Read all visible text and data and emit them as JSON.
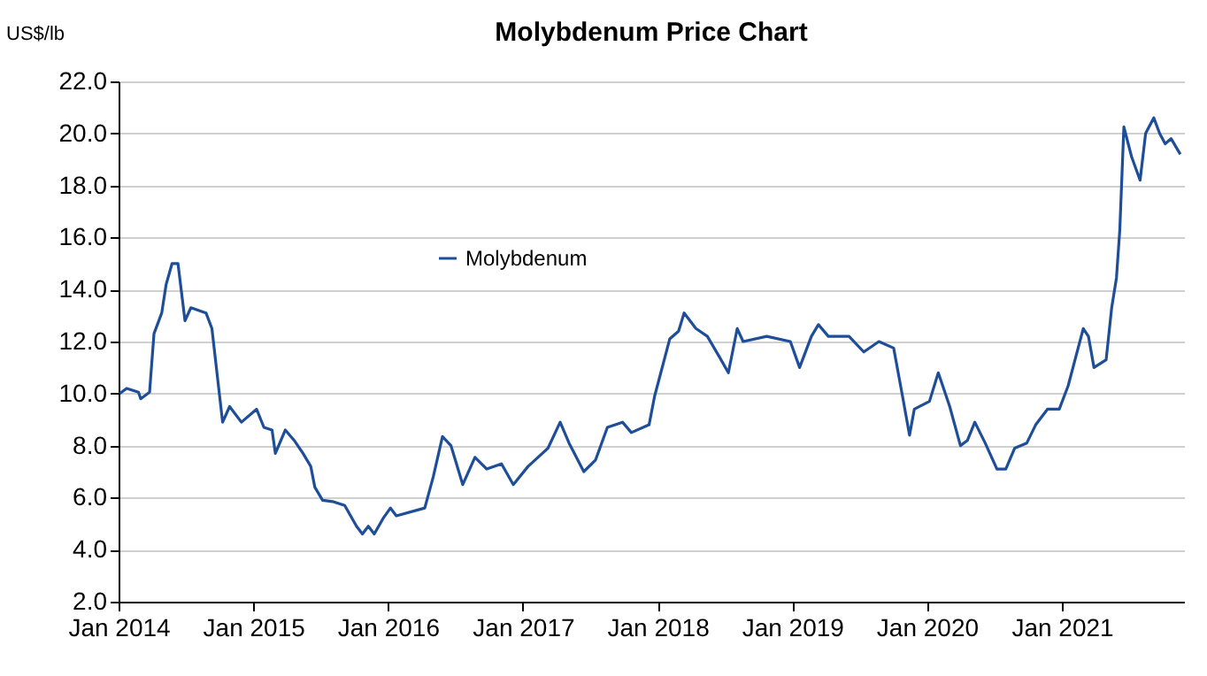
{
  "chart_data": {
    "type": "line",
    "title": "Molybdenum Price Chart",
    "ylabel": "US$/lb",
    "x": [
      "2014-01-04",
      "2014-01-23",
      "2014-02-24",
      "2014-03-02",
      "2014-03-26",
      "2014-04-07",
      "2014-04-28",
      "2014-05-10",
      "2014-05-26",
      "2014-06-11",
      "2014-06-30",
      "2014-07-16",
      "2014-08-26",
      "2014-09-11",
      "2014-10-10",
      "2014-10-29",
      "2014-11-30",
      "2015-01-10",
      "2015-01-30",
      "2015-02-21",
      "2015-03-02",
      "2015-03-29",
      "2015-04-22",
      "2015-05-16",
      "2015-06-06",
      "2015-06-17",
      "2015-07-08",
      "2015-08-04",
      "2015-09-06",
      "2015-10-08",
      "2015-10-24",
      "2015-11-09",
      "2015-11-25",
      "2015-12-19",
      "2016-01-08",
      "2016-01-24",
      "2016-04-10",
      "2016-05-03",
      "2016-05-28",
      "2016-06-20",
      "2016-07-22",
      "2016-08-24",
      "2016-09-25",
      "2016-11-04",
      "2016-12-06",
      "2017-01-15",
      "2017-03-10",
      "2017-04-12",
      "2017-05-06",
      "2017-06-15",
      "2017-07-17",
      "2017-08-18",
      "2017-09-28",
      "2017-10-22",
      "2017-12-09",
      "2017-12-24",
      "2018-02-03",
      "2018-02-27",
      "2018-03-14",
      "2018-04-15",
      "2018-05-16",
      "2018-06-18",
      "2018-07-12",
      "2018-08-05",
      "2018-08-21",
      "2018-10-24",
      "2018-12-27",
      "2019-01-21",
      "2019-02-22",
      "2019-03-13",
      "2019-04-09",
      "2019-06-04",
      "2019-07-14",
      "2019-08-24",
      "2019-10-03",
      "2019-10-27",
      "2019-11-15",
      "2019-11-28",
      "2020-01-08",
      "2020-02-01",
      "2020-03-03",
      "2020-04-01",
      "2020-04-20",
      "2020-05-10",
      "2020-06-07",
      "2020-07-09",
      "2020-08-02",
      "2020-08-26",
      "2020-09-28",
      "2020-10-22",
      "2020-11-23",
      "2020-12-25",
      "2021-01-18",
      "2021-02-28",
      "2021-03-14",
      "2021-03-29",
      "2021-05-01",
      "2021-05-16",
      "2021-05-29",
      "2021-06-07",
      "2021-06-18",
      "2021-07-09",
      "2021-08-01",
      "2021-08-16",
      "2021-09-07",
      "2021-09-23",
      "2021-10-08",
      "2021-10-24",
      "2021-11-18"
    ],
    "series": [
      {
        "name": "Molybdenum",
        "color": "#1f4e99",
        "values": [
          10.0,
          10.2,
          10.05,
          9.8,
          10.05,
          12.3,
          13.1,
          14.2,
          15.0,
          15.0,
          12.8,
          13.3,
          13.1,
          12.5,
          8.9,
          9.5,
          8.9,
          9.4,
          8.7,
          8.6,
          7.7,
          8.6,
          8.2,
          7.7,
          7.2,
          6.4,
          5.9,
          5.85,
          5.7,
          4.9,
          4.6,
          4.9,
          4.6,
          5.2,
          5.6,
          5.3,
          5.6,
          6.8,
          8.35,
          8.0,
          6.5,
          7.55,
          7.1,
          7.3,
          6.5,
          7.2,
          7.9,
          8.9,
          8.1,
          7.0,
          7.45,
          8.7,
          8.9,
          8.5,
          8.8,
          9.9,
          12.1,
          12.4,
          13.1,
          12.5,
          12.2,
          11.4,
          10.8,
          12.5,
          12.0,
          12.2,
          12.0,
          11.0,
          12.2,
          12.65,
          12.2,
          12.2,
          11.6,
          12.0,
          11.75,
          9.9,
          8.4,
          9.4,
          9.7,
          10.8,
          9.5,
          8.0,
          8.2,
          8.9,
          8.1,
          7.1,
          7.1,
          7.9,
          8.1,
          8.8,
          9.4,
          9.4,
          10.3,
          12.5,
          12.2,
          11.0,
          11.3,
          13.3,
          14.45,
          16.3,
          20.25,
          19.1,
          18.2,
          20.0,
          20.6,
          20.0,
          19.6,
          19.8,
          19.2
        ]
      }
    ],
    "xlim": [
      "2014-01-01",
      "2021-11-28"
    ],
    "xticks": [
      {
        "value": "2014-01-01",
        "label": "Jan 2014"
      },
      {
        "value": "2015-01-01",
        "label": "Jan 2015"
      },
      {
        "value": "2016-01-01",
        "label": "Jan 2016"
      },
      {
        "value": "2017-01-01",
        "label": "Jan 2017"
      },
      {
        "value": "2018-01-01",
        "label": "Jan 2018"
      },
      {
        "value": "2019-01-01",
        "label": "Jan 2019"
      },
      {
        "value": "2020-01-01",
        "label": "Jan 2020"
      },
      {
        "value": "2021-01-01",
        "label": "Jan 2021"
      }
    ],
    "ylim": [
      2,
      22
    ],
    "yticks": [
      {
        "value": 2,
        "label": "2.0"
      },
      {
        "value": 4,
        "label": "4.0"
      },
      {
        "value": 6,
        "label": "6.0"
      },
      {
        "value": 8,
        "label": "8.0"
      },
      {
        "value": 10,
        "label": "10.0"
      },
      {
        "value": 12,
        "label": "12.0"
      },
      {
        "value": 14,
        "label": "14.0"
      },
      {
        "value": 16,
        "label": "16.0"
      },
      {
        "value": 18,
        "label": "18.0"
      },
      {
        "value": 20,
        "label": "20.0"
      },
      {
        "value": 22,
        "label": "22.0"
      }
    ],
    "grid": "y",
    "legend": "top",
    "marker": "none",
    "line_style": "solid"
  }
}
